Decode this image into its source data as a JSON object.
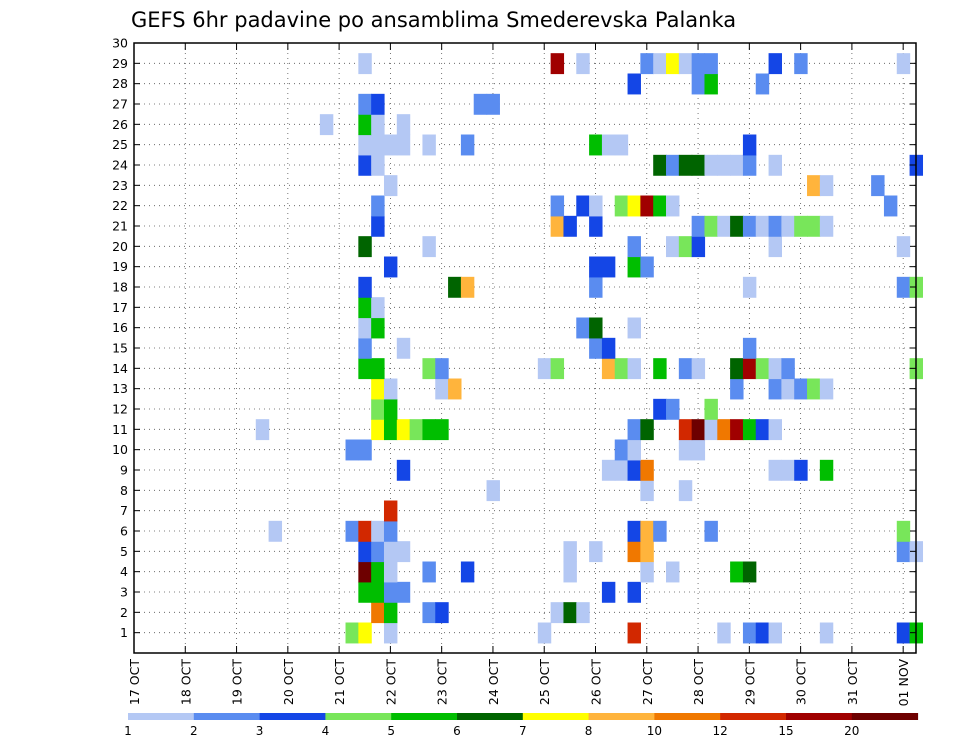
{
  "chart_data": {
    "type": "heatmap",
    "title": "GEFS 6hr padavine po ansamblima Smederevska Palanka",
    "x_tick_labels": [
      "17 OCT",
      "18 OCT",
      "19 OCT",
      "20 OCT",
      "21 OCT",
      "22 OCT",
      "23 OCT",
      "24 OCT",
      "25 OCT",
      "26 OCT",
      "27 OCT",
      "28 OCT",
      "29 OCT",
      "30 OCT",
      "31 OCT",
      "01 NOV"
    ],
    "y_tick_labels": [
      "1",
      "2",
      "3",
      "4",
      "5",
      "6",
      "7",
      "8",
      "9",
      "10",
      "11",
      "12",
      "13",
      "14",
      "15",
      "16",
      "17",
      "18",
      "19",
      "20",
      "21",
      "22",
      "23",
      "24",
      "25",
      "26",
      "27",
      "28",
      "29",
      "30"
    ],
    "x_unit": "6-hour step from 17 OCT 00Z",
    "xlim": [
      0,
      61
    ],
    "ylim": [
      0,
      30
    ],
    "grid": true,
    "legend": {
      "placement": "bottom",
      "levels": [
        "1",
        "2",
        "3",
        "4",
        "5",
        "6",
        "7",
        "8",
        "10",
        "12",
        "15",
        "20"
      ],
      "colors": [
        "#b4c8f4",
        "#5a8cf0",
        "#1446e6",
        "#78e65a",
        "#00be00",
        "#006400",
        "#ffff00",
        "#ffb43c",
        "#f07800",
        "#d22800",
        "#a00000",
        "#6e0000"
      ]
    },
    "cells": [
      [
        1,
        17,
        4
      ],
      [
        1,
        18,
        7
      ],
      [
        1,
        20,
        1
      ],
      [
        1,
        32,
        1
      ],
      [
        1,
        39,
        10
      ],
      [
        1,
        46,
        1
      ],
      [
        1,
        48,
        2
      ],
      [
        1,
        49,
        3
      ],
      [
        1,
        50,
        1
      ],
      [
        1,
        54,
        1
      ],
      [
        1,
        60,
        3
      ],
      [
        1,
        61,
        5
      ],
      [
        2,
        19,
        9
      ],
      [
        2,
        20,
        5
      ],
      [
        2,
        23,
        2
      ],
      [
        2,
        24,
        3
      ],
      [
        2,
        33,
        1
      ],
      [
        2,
        34,
        6
      ],
      [
        2,
        35,
        1
      ],
      [
        3,
        18,
        5
      ],
      [
        3,
        19,
        5
      ],
      [
        3,
        20,
        2
      ],
      [
        3,
        21,
        2
      ],
      [
        3,
        37,
        3
      ],
      [
        3,
        39,
        3
      ],
      [
        4,
        18,
        12
      ],
      [
        4,
        19,
        5
      ],
      [
        4,
        20,
        1
      ],
      [
        4,
        23,
        2
      ],
      [
        4,
        26,
        3
      ],
      [
        4,
        34,
        1
      ],
      [
        4,
        40,
        1
      ],
      [
        4,
        42,
        1
      ],
      [
        4,
        47,
        5
      ],
      [
        4,
        48,
        6
      ],
      [
        5,
        18,
        3
      ],
      [
        5,
        19,
        2
      ],
      [
        5,
        20,
        1
      ],
      [
        5,
        21,
        1
      ],
      [
        5,
        34,
        1
      ],
      [
        5,
        36,
        1
      ],
      [
        5,
        39,
        9
      ],
      [
        5,
        40,
        8
      ],
      [
        5,
        60,
        2
      ],
      [
        5,
        61,
        1
      ],
      [
        6,
        11,
        1
      ],
      [
        6,
        17,
        2
      ],
      [
        6,
        18,
        10
      ],
      [
        6,
        19,
        1
      ],
      [
        6,
        20,
        2
      ],
      [
        6,
        39,
        3
      ],
      [
        6,
        40,
        8
      ],
      [
        6,
        41,
        2
      ],
      [
        6,
        45,
        2
      ],
      [
        6,
        60,
        4
      ],
      [
        7,
        20,
        10
      ],
      [
        8,
        28,
        1
      ],
      [
        8,
        40,
        1
      ],
      [
        8,
        43,
        1
      ],
      [
        9,
        21,
        3
      ],
      [
        9,
        37,
        1
      ],
      [
        9,
        38,
        1
      ],
      [
        9,
        39,
        3
      ],
      [
        9,
        40,
        9
      ],
      [
        9,
        50,
        1
      ],
      [
        9,
        51,
        1
      ],
      [
        9,
        52,
        3
      ],
      [
        9,
        54,
        5
      ],
      [
        10,
        17,
        2
      ],
      [
        10,
        18,
        2
      ],
      [
        10,
        38,
        2
      ],
      [
        10,
        39,
        1
      ],
      [
        10,
        43,
        1
      ],
      [
        10,
        44,
        1
      ],
      [
        11,
        10,
        1
      ],
      [
        11,
        19,
        7
      ],
      [
        11,
        20,
        5
      ],
      [
        11,
        21,
        7
      ],
      [
        11,
        22,
        4
      ],
      [
        11,
        23,
        5
      ],
      [
        11,
        24,
        5
      ],
      [
        11,
        39,
        2
      ],
      [
        11,
        40,
        6
      ],
      [
        11,
        43,
        10
      ],
      [
        11,
        44,
        12
      ],
      [
        11,
        45,
        1
      ],
      [
        11,
        46,
        9
      ],
      [
        11,
        47,
        11
      ],
      [
        11,
        48,
        5
      ],
      [
        11,
        49,
        3
      ],
      [
        11,
        50,
        1
      ],
      [
        12,
        19,
        4
      ],
      [
        12,
        20,
        5
      ],
      [
        12,
        41,
        3
      ],
      [
        12,
        42,
        2
      ],
      [
        12,
        45,
        4
      ],
      [
        13,
        19,
        7
      ],
      [
        13,
        20,
        1
      ],
      [
        13,
        24,
        1
      ],
      [
        13,
        25,
        8
      ],
      [
        13,
        47,
        2
      ],
      [
        13,
        50,
        2
      ],
      [
        13,
        51,
        1
      ],
      [
        13,
        52,
        2
      ],
      [
        13,
        53,
        4
      ],
      [
        13,
        54,
        1
      ],
      [
        14,
        18,
        5
      ],
      [
        14,
        19,
        5
      ],
      [
        14,
        23,
        4
      ],
      [
        14,
        24,
        2
      ],
      [
        14,
        32,
        1
      ],
      [
        14,
        33,
        4
      ],
      [
        14,
        37,
        8
      ],
      [
        14,
        38,
        4
      ],
      [
        14,
        39,
        1
      ],
      [
        14,
        41,
        5
      ],
      [
        14,
        43,
        2
      ],
      [
        14,
        44,
        1
      ],
      [
        14,
        47,
        6
      ],
      [
        14,
        48,
        11
      ],
      [
        14,
        49,
        4
      ],
      [
        14,
        50,
        1
      ],
      [
        14,
        51,
        2
      ],
      [
        14,
        61,
        4
      ],
      [
        15,
        18,
        2
      ],
      [
        15,
        21,
        1
      ],
      [
        15,
        36,
        2
      ],
      [
        15,
        37,
        3
      ],
      [
        15,
        48,
        2
      ],
      [
        16,
        18,
        1
      ],
      [
        16,
        19,
        5
      ],
      [
        16,
        35,
        2
      ],
      [
        16,
        36,
        6
      ],
      [
        16,
        39,
        1
      ],
      [
        17,
        18,
        5
      ],
      [
        17,
        19,
        1
      ],
      [
        18,
        18,
        3
      ],
      [
        18,
        25,
        6
      ],
      [
        18,
        26,
        8
      ],
      [
        18,
        36,
        2
      ],
      [
        18,
        48,
        1
      ],
      [
        18,
        60,
        2
      ],
      [
        18,
        61,
        4
      ],
      [
        19,
        20,
        3
      ],
      [
        19,
        36,
        3
      ],
      [
        19,
        37,
        3
      ],
      [
        19,
        39,
        5
      ],
      [
        19,
        40,
        2
      ],
      [
        20,
        18,
        6
      ],
      [
        20,
        23,
        1
      ],
      [
        20,
        39,
        2
      ],
      [
        20,
        42,
        1
      ],
      [
        20,
        43,
        4
      ],
      [
        20,
        44,
        3
      ],
      [
        20,
        50,
        1
      ],
      [
        20,
        60,
        1
      ],
      [
        21,
        19,
        3
      ],
      [
        21,
        33,
        8
      ],
      [
        21,
        34,
        3
      ],
      [
        21,
        36,
        3
      ],
      [
        21,
        44,
        2
      ],
      [
        21,
        45,
        4
      ],
      [
        21,
        46,
        1
      ],
      [
        21,
        47,
        6
      ],
      [
        21,
        48,
        2
      ],
      [
        21,
        49,
        1
      ],
      [
        21,
        50,
        2
      ],
      [
        21,
        51,
        1
      ],
      [
        21,
        52,
        4
      ],
      [
        21,
        53,
        4
      ],
      [
        21,
        54,
        1
      ],
      [
        22,
        19,
        2
      ],
      [
        22,
        33,
        2
      ],
      [
        22,
        35,
        3
      ],
      [
        22,
        36,
        1
      ],
      [
        22,
        38,
        4
      ],
      [
        22,
        39,
        7
      ],
      [
        22,
        40,
        11
      ],
      [
        22,
        41,
        5
      ],
      [
        22,
        42,
        1
      ],
      [
        22,
        59,
        2
      ],
      [
        23,
        20,
        1
      ],
      [
        23,
        53,
        8
      ],
      [
        23,
        54,
        1
      ],
      [
        23,
        58,
        2
      ],
      [
        24,
        18,
        3
      ],
      [
        24,
        19,
        1
      ],
      [
        24,
        41,
        6
      ],
      [
        24,
        42,
        2
      ],
      [
        24,
        43,
        6
      ],
      [
        24,
        44,
        6
      ],
      [
        24,
        45,
        1
      ],
      [
        24,
        46,
        1
      ],
      [
        24,
        47,
        1
      ],
      [
        24,
        48,
        2
      ],
      [
        24,
        50,
        1
      ],
      [
        24,
        61,
        3
      ],
      [
        25,
        18,
        1
      ],
      [
        25,
        19,
        1
      ],
      [
        25,
        20,
        1
      ],
      [
        25,
        21,
        1
      ],
      [
        25,
        23,
        1
      ],
      [
        25,
        26,
        2
      ],
      [
        25,
        36,
        5
      ],
      [
        25,
        37,
        1
      ],
      [
        25,
        38,
        1
      ],
      [
        25,
        48,
        3
      ],
      [
        26,
        15,
        1
      ],
      [
        26,
        18,
        5
      ],
      [
        26,
        19,
        1
      ],
      [
        26,
        21,
        1
      ],
      [
        27,
        18,
        2
      ],
      [
        27,
        19,
        3
      ],
      [
        27,
        27,
        2
      ],
      [
        27,
        28,
        2
      ],
      [
        28,
        39,
        3
      ],
      [
        28,
        44,
        2
      ],
      [
        28,
        45,
        5
      ],
      [
        28,
        49,
        2
      ],
      [
        29,
        18,
        1
      ],
      [
        29,
        33,
        11
      ],
      [
        29,
        35,
        1
      ],
      [
        29,
        40,
        2
      ],
      [
        29,
        41,
        1
      ],
      [
        29,
        42,
        7
      ],
      [
        29,
        43,
        1
      ],
      [
        29,
        44,
        2
      ],
      [
        29,
        45,
        2
      ],
      [
        29,
        50,
        3
      ],
      [
        29,
        52,
        2
      ],
      [
        29,
        60,
        1
      ]
    ]
  }
}
